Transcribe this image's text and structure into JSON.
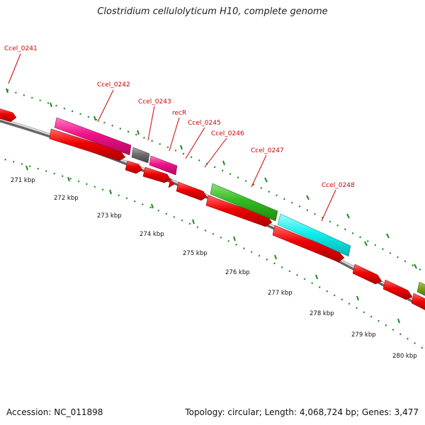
{
  "title": "Clostridium cellulolyticum H10, complete genome",
  "footer": {
    "accession": "Accession: NC_011898",
    "topology": "Topology: circular; Length: 4,068,724 bp; Genes: 3,477"
  },
  "colors": {
    "backbone": "#888888",
    "cds": "#ee0000",
    "label": "#cc0000",
    "tick": "#228822",
    "magenta": "#ee1188",
    "gray": "#777777",
    "green": "#33bb22",
    "cyan": "#11eeee",
    "olive": "#779922"
  },
  "gene_labels": [
    "Ccel_0241",
    "Ccel_0242",
    "Ccel_0243",
    "recR",
    "Ccel_0245",
    "Ccel_0246",
    "Ccel_0247",
    "Ccel_0248"
  ],
  "scale_labels": [
    "271 kbp",
    "272 kbp",
    "273 kbp",
    "274 kbp",
    "275 kbp",
    "276 kbp",
    "277 kbp",
    "278 kbp",
    "279 kbp",
    "280 kbp"
  ]
}
